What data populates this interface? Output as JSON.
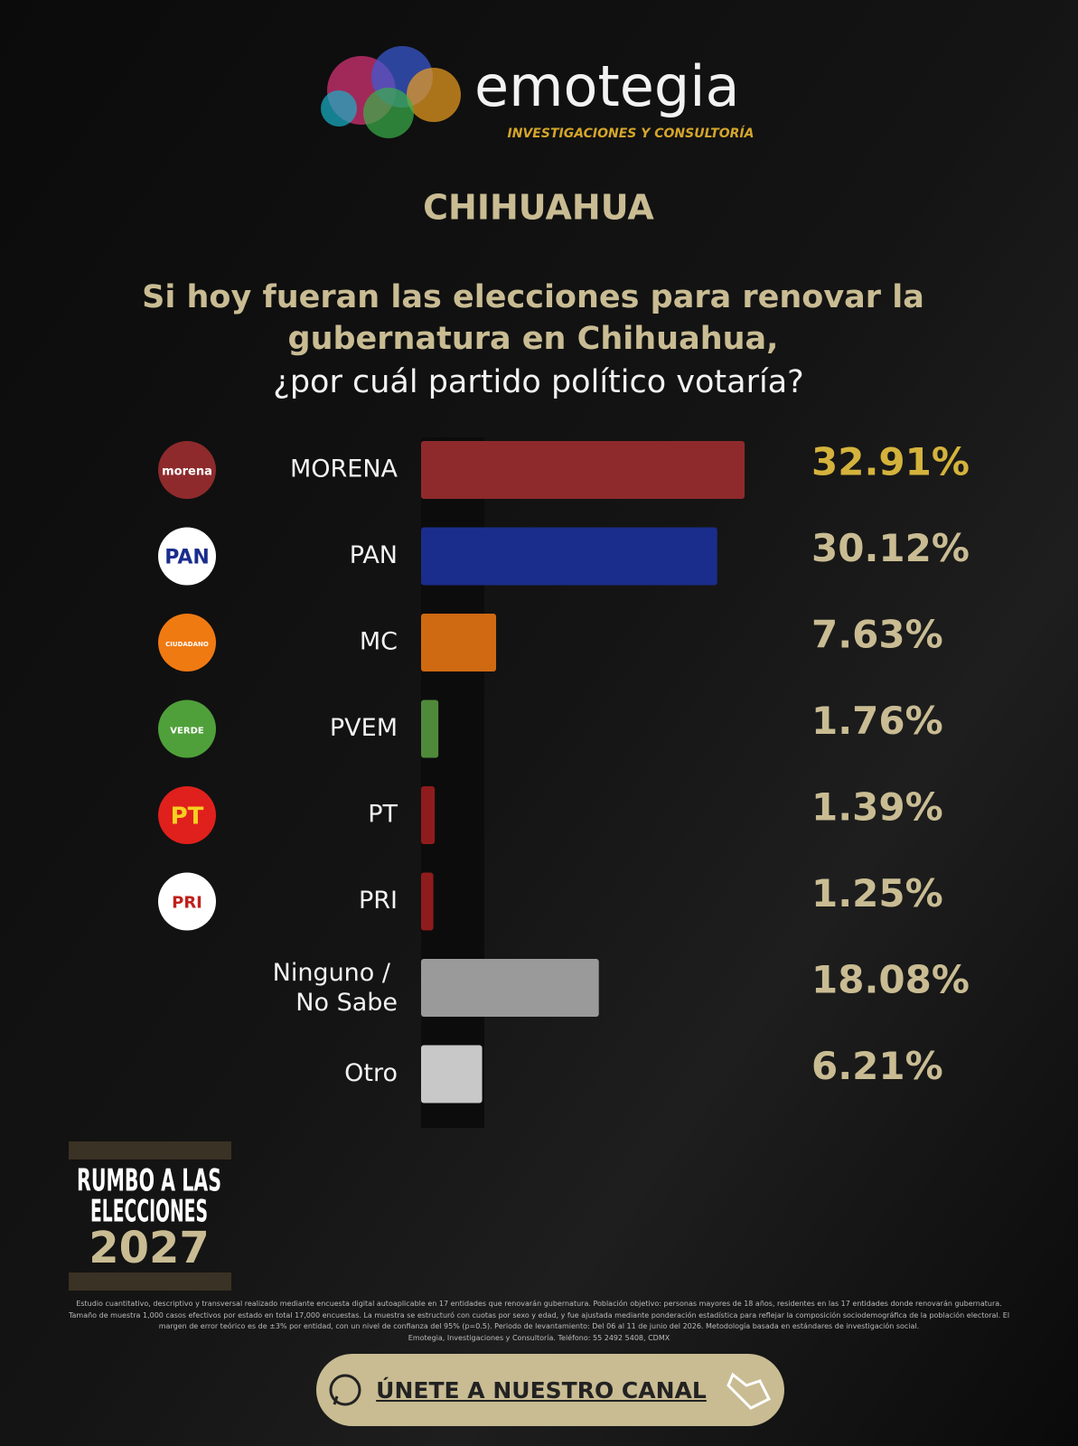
{
  "header": {
    "brand": "emotegia",
    "brand_tagline": "INVESTIGACIONES Y CONSULTORÍA",
    "state": "CHIHUAHUA"
  },
  "chart_data": {
    "type": "hbar",
    "title_lines": [
      "Si hoy fueran las elecciones para renovar la",
      "gubernatura en Chihuahua,"
    ],
    "subtitle": "¿por cuál partido político votaría?",
    "categories": [
      "MORENA",
      "PAN",
      "MC",
      "PVEM",
      "PT",
      "PRI",
      "Ninguno / No Sabe",
      "Otro"
    ],
    "logos": [
      "morena",
      "PAN",
      "CIUDADANO",
      "VERDE",
      "PT",
      "PRI",
      null,
      null
    ],
    "values": [
      32.91,
      30.12,
      7.63,
      1.76,
      1.39,
      1.25,
      18.08,
      6.21
    ],
    "value_labels": [
      "32.91%",
      "30.12%",
      "7.63%",
      "1.76%",
      "1.39%",
      "1.25%",
      "18.08%",
      "6.21%"
    ],
    "colors": [
      "#8e2a2c",
      "#1b2d8c",
      "#d06a12",
      "#4f8a3a",
      "#8f1c1c",
      "#8f1c1c",
      "#9a9a9a",
      "#c8c8c8"
    ]
  },
  "badge": {
    "lines": [
      "RUMBO A LAS",
      "ELECCIONES",
      "2027"
    ]
  },
  "footnote": [
    "Estudio cuantitativo, descriptivo y transversal realizado mediante encuesta digital autoaplicable en 17 entidades que renovarán gubernatura. Población objetivo: personas mayores de 18 años, residentes en las 17 entidades donde renovarán gubernatura.",
    "Tamaño de muestra 1,000 casos efectivos por estado en total 17,000 encuestas. La muestra se estructuró con cuotas por sexo y edad, y fue ajustada mediante ponderación estadística para reflejar la composición sociodemográfica de la población electoral. El",
    "margen de error teórico es de ±3% por entidad, con un nivel de confianza del 95% (p=0.5). Periodo de levantamiento: Del 06 al 11 de junio del 2026. Metodología basada en estándares de investigación social.",
    "Emotegia, Investigaciones y Consultoría. Teléfono: 55 2492 5408, CDMX"
  ],
  "button": {
    "label": "ÚNETE A NUESTRO CANAL"
  }
}
